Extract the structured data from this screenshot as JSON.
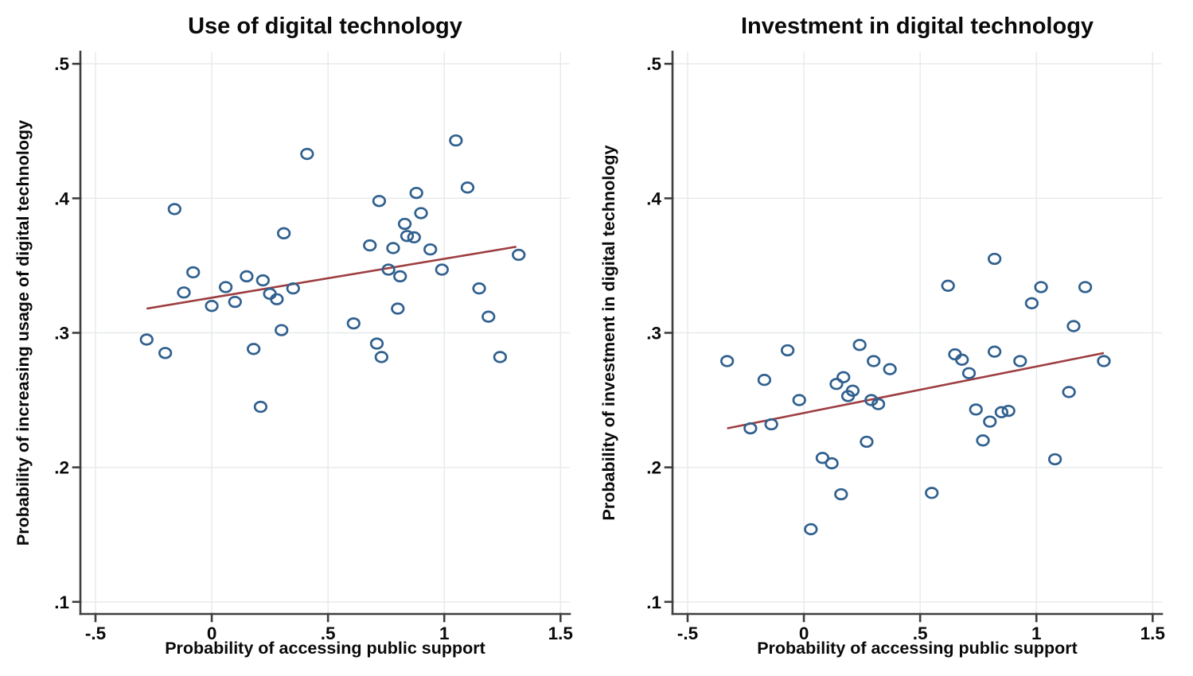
{
  "chart_data": [
    {
      "type": "scatter",
      "title": "Use of digital technology",
      "xlabel": "Probability of accessing public support",
      "ylabel": "Probability of increasing usage of digital technology",
      "xlim": [
        -0.565,
        1.54
      ],
      "ylim": [
        0.091,
        0.509
      ],
      "xticks": [
        -0.5,
        0,
        0.5,
        1,
        1.5
      ],
      "xtick_labels": [
        "-.5",
        "0",
        ".5",
        "1",
        "1.5"
      ],
      "yticks": [
        0.1,
        0.2,
        0.3,
        0.4,
        0.5
      ],
      "ytick_labels": [
        ".1",
        ".2",
        ".3",
        ".4",
        ".5"
      ],
      "grid": true,
      "legend": "none",
      "points": [
        [
          -0.28,
          0.295
        ],
        [
          -0.2,
          0.285
        ],
        [
          -0.16,
          0.392
        ],
        [
          -0.12,
          0.33
        ],
        [
          -0.08,
          0.345
        ],
        [
          0.0,
          0.32
        ],
        [
          0.06,
          0.334
        ],
        [
          0.1,
          0.323
        ],
        [
          0.15,
          0.342
        ],
        [
          0.18,
          0.288
        ],
        [
          0.21,
          0.245
        ],
        [
          0.22,
          0.339
        ],
        [
          0.25,
          0.329
        ],
        [
          0.28,
          0.325
        ],
        [
          0.3,
          0.302
        ],
        [
          0.31,
          0.374
        ],
        [
          0.35,
          0.333
        ],
        [
          0.41,
          0.433
        ],
        [
          0.61,
          0.307
        ],
        [
          0.68,
          0.365
        ],
        [
          0.71,
          0.292
        ],
        [
          0.72,
          0.398
        ],
        [
          0.73,
          0.282
        ],
        [
          0.76,
          0.347
        ],
        [
          0.78,
          0.363
        ],
        [
          0.8,
          0.318
        ],
        [
          0.81,
          0.342
        ],
        [
          0.83,
          0.381
        ],
        [
          0.84,
          0.372
        ],
        [
          0.87,
          0.371
        ],
        [
          0.88,
          0.404
        ],
        [
          0.9,
          0.389
        ],
        [
          0.94,
          0.362
        ],
        [
          0.99,
          0.347
        ],
        [
          1.05,
          0.443
        ],
        [
          1.1,
          0.408
        ],
        [
          1.15,
          0.333
        ],
        [
          1.19,
          0.312
        ],
        [
          1.24,
          0.282
        ],
        [
          1.32,
          0.358
        ]
      ],
      "fit_line": {
        "x1": -0.28,
        "y1": 0.318,
        "x2": 1.31,
        "y2": 0.364
      }
    },
    {
      "type": "scatter",
      "title": "Investment in digital technology",
      "xlabel": "Probability of accessing public support",
      "ylabel": "Probability of investment in digital technology",
      "xlim": [
        -0.565,
        1.54
      ],
      "ylim": [
        0.091,
        0.509
      ],
      "xticks": [
        -0.5,
        0,
        0.5,
        1,
        1.5
      ],
      "xtick_labels": [
        "-.5",
        "0",
        ".5",
        "1",
        "1.5"
      ],
      "yticks": [
        0.1,
        0.2,
        0.3,
        0.4,
        0.5
      ],
      "ytick_labels": [
        ".1",
        ".2",
        ".3",
        ".4",
        ".5"
      ],
      "grid": true,
      "legend": "none",
      "points": [
        [
          -0.33,
          0.279
        ],
        [
          -0.23,
          0.229
        ],
        [
          -0.17,
          0.265
        ],
        [
          -0.14,
          0.232
        ],
        [
          -0.07,
          0.287
        ],
        [
          -0.02,
          0.25
        ],
        [
          0.03,
          0.154
        ],
        [
          0.08,
          0.207
        ],
        [
          0.12,
          0.203
        ],
        [
          0.14,
          0.262
        ],
        [
          0.16,
          0.18
        ],
        [
          0.17,
          0.267
        ],
        [
          0.19,
          0.253
        ],
        [
          0.21,
          0.257
        ],
        [
          0.24,
          0.291
        ],
        [
          0.27,
          0.219
        ],
        [
          0.29,
          0.25
        ],
        [
          0.3,
          0.279
        ],
        [
          0.32,
          0.247
        ],
        [
          0.37,
          0.273
        ],
        [
          0.55,
          0.181
        ],
        [
          0.62,
          0.335
        ],
        [
          0.65,
          0.284
        ],
        [
          0.68,
          0.28
        ],
        [
          0.71,
          0.27
        ],
        [
          0.74,
          0.243
        ],
        [
          0.77,
          0.22
        ],
        [
          0.8,
          0.234
        ],
        [
          0.82,
          0.286
        ],
        [
          0.82,
          0.355
        ],
        [
          0.85,
          0.241
        ],
        [
          0.88,
          0.242
        ],
        [
          0.93,
          0.279
        ],
        [
          0.98,
          0.322
        ],
        [
          1.02,
          0.334
        ],
        [
          1.08,
          0.206
        ],
        [
          1.14,
          0.256
        ],
        [
          1.16,
          0.305
        ],
        [
          1.21,
          0.334
        ],
        [
          1.29,
          0.279
        ]
      ],
      "fit_line": {
        "x1": -0.33,
        "y1": 0.229,
        "x2": 1.29,
        "y2": 0.285
      }
    }
  ],
  "colors": {
    "marker_stroke": "#30608f",
    "fit_line": "#9d3e41",
    "grid": "#e7e9ea",
    "axis": "#3f3f3f",
    "text": "#0a0a0a",
    "background": "#ffffff"
  }
}
